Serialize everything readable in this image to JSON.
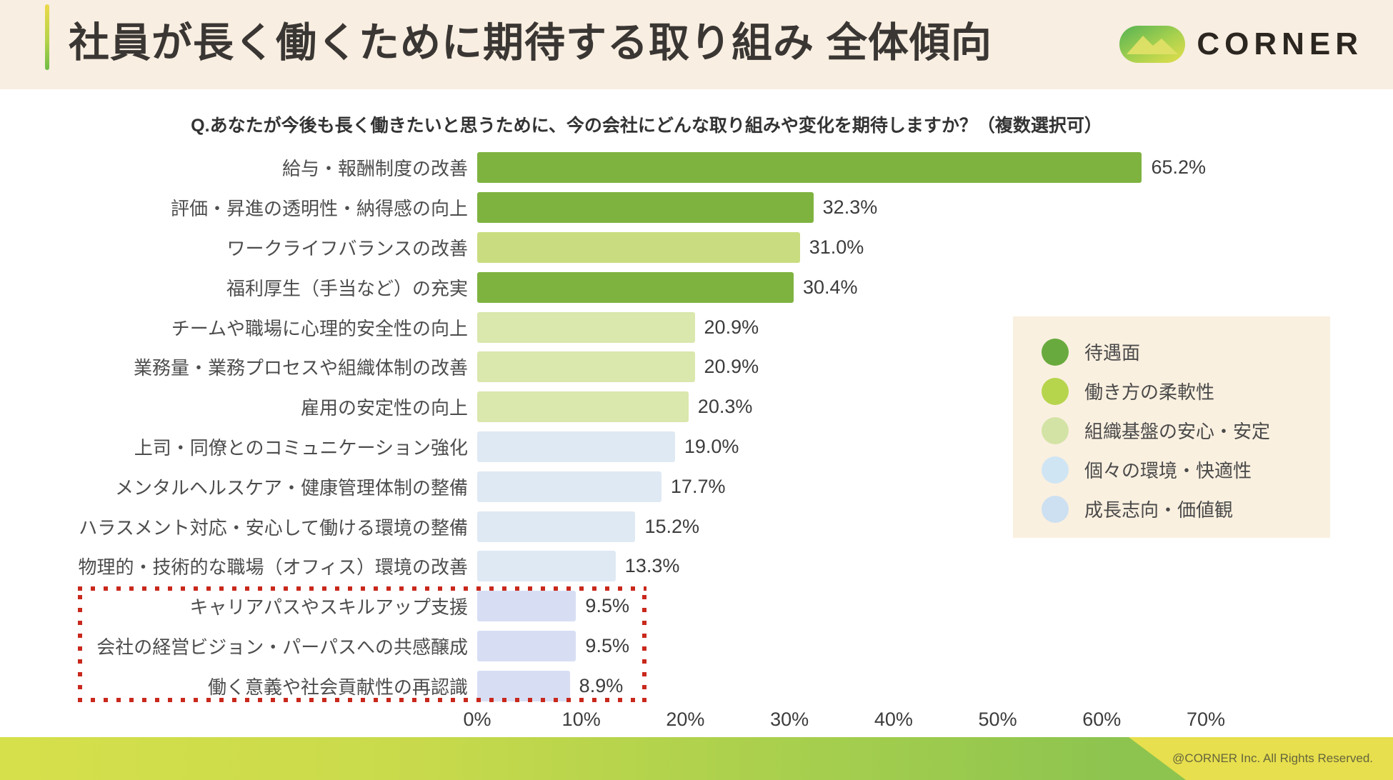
{
  "header": {
    "title": "社員が長く働くために期待する取り組み 全体傾向",
    "brand": "CORNER"
  },
  "chart_data": {
    "type": "bar",
    "orientation": "horizontal",
    "title": "Q.あなたが今後も長く働きたいと思うために、今の会社にどんな取り組みや変化を期待しますか？（複数選択可）",
    "xlim": [
      0,
      70
    ],
    "x_ticks": [
      "0%",
      "10%",
      "20%",
      "30%",
      "40%",
      "50%",
      "60%",
      "70%"
    ],
    "grid": false,
    "categories": [
      "給与・報酬制度の改善",
      "評価・昇進の透明性・納得感の向上",
      "ワークライフバランスの改善",
      "福利厚生（手当など）の充実",
      "チームや職場に心理的安全性の向上",
      "業務量・業務プロセスや組織体制の改善",
      "雇用の安定性の向上",
      "上司・同僚とのコミュニケーション強化",
      "メンタルヘルスケア・健康管理体制の整備",
      "ハラスメント対応・安心して働ける環境の整備",
      "物理的・技術的な職場（オフィス）環境の改善",
      "キャリアパスやスキルアップ支援",
      "会社の経営ビジョン・パーパスへの共感醸成",
      "働く意義や社会貢献性の再認識"
    ],
    "values": [
      65.2,
      32.3,
      31.0,
      30.4,
      20.9,
      20.9,
      20.3,
      19.0,
      17.7,
      15.2,
      13.3,
      9.5,
      9.5,
      8.9
    ],
    "value_labels": [
      "65.2%",
      "32.3%",
      "31.0%",
      "30.4%",
      "20.9%",
      "20.9%",
      "20.3%",
      "19.0%",
      "17.7%",
      "15.2%",
      "13.3%",
      "9.5%",
      "9.5%",
      "8.9%"
    ],
    "bar_colors": [
      "#7eb340",
      "#7eb340",
      "#c9dd80",
      "#7eb340",
      "#dae7ad",
      "#dae7ad",
      "#dae7ad",
      "#dfe9f4",
      "#dfe9f4",
      "#dfe9f4",
      "#dfe9f4",
      "#d7def4",
      "#d7def4",
      "#d7def4"
    ],
    "legend_position": "right",
    "legend": [
      {
        "label": "待遇面",
        "color": "#69aa3e"
      },
      {
        "label": "働き方の柔軟性",
        "color": "#b7d44d"
      },
      {
        "label": "組織基盤の安心・安定",
        "color": "#d3e3a5"
      },
      {
        "label": "個々の環境・快適性",
        "color": "#cfe5f4"
      },
      {
        "label": "成長志向・価値観",
        "color": "#cce0f1"
      }
    ],
    "highlight": {
      "rows": [
        11,
        12,
        13
      ],
      "border_color": "#c9281c"
    }
  },
  "footer": {
    "copyright": "@CORNER Inc. All Rights Reserved."
  }
}
